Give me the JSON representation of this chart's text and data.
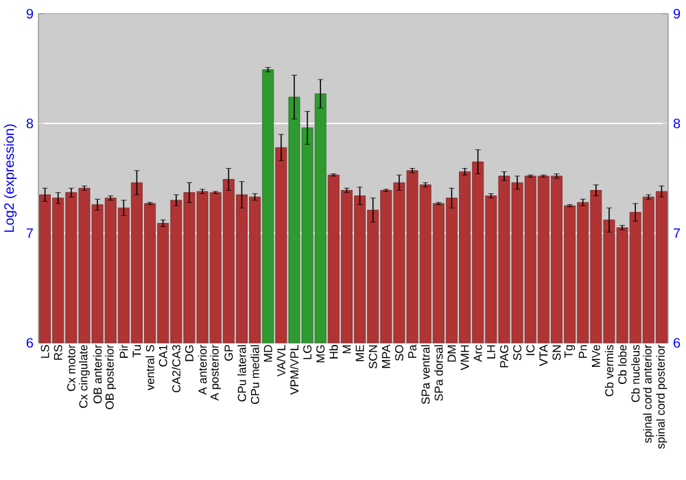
{
  "chart_data": {
    "type": "bar",
    "ylabel": "Log2 (expression)",
    "categories": [
      "LS",
      "RS",
      "Cx motor",
      "Cx cingulate",
      "OB anterior",
      "OB posterior",
      "Pir",
      "Tu",
      "ventral S",
      "CA1",
      "CA2/CA3",
      "DG",
      "A anterior",
      "A posterior",
      "GP",
      "CPu lateral",
      "CPu medial",
      "MD",
      "VA/VL",
      "VPM/VPL",
      "LG",
      "MG",
      "Hb",
      "M",
      "ME",
      "SCN",
      "MPA",
      "SO",
      "Pa",
      "SPa ventral",
      "SPa dorsal",
      "DM",
      "VMH",
      "Arc",
      "LH",
      "PAG",
      "SC",
      "IC",
      "VTA",
      "SN",
      "Tg",
      "Pn",
      "MVe",
      "Cb vermis",
      "Cb lobe",
      "Cb nucleus",
      "spinal cord anterior",
      "spinal cord posterior"
    ],
    "values": [
      7.35,
      7.32,
      7.37,
      7.41,
      7.26,
      7.32,
      7.23,
      7.46,
      7.27,
      7.09,
      7.3,
      7.37,
      7.38,
      7.37,
      7.49,
      7.35,
      7.33,
      8.49,
      7.78,
      8.24,
      7.96,
      8.27,
      7.53,
      7.39,
      7.34,
      7.21,
      7.39,
      7.46,
      7.57,
      7.44,
      7.27,
      7.32,
      7.56,
      7.65,
      7.34,
      7.52,
      7.46,
      7.52,
      7.52,
      7.52,
      7.25,
      7.28,
      7.39,
      7.12,
      7.05,
      7.19,
      7.33,
      7.38
    ],
    "errors": [
      0.06,
      0.05,
      0.04,
      0.02,
      0.05,
      0.02,
      0.07,
      0.11,
      0.01,
      0.03,
      0.05,
      0.09,
      0.02,
      0.01,
      0.1,
      0.12,
      0.03,
      0.02,
      0.12,
      0.2,
      0.15,
      0.13,
      0.01,
      0.02,
      0.08,
      0.11,
      0.01,
      0.07,
      0.02,
      0.02,
      0.01,
      0.09,
      0.03,
      0.11,
      0.02,
      0.04,
      0.06,
      0.01,
      0.01,
      0.02,
      0.01,
      0.03,
      0.05,
      0.11,
      0.02,
      0.08,
      0.02,
      0.05
    ],
    "colors": [
      "#b03434",
      "#b03434",
      "#b03434",
      "#b03434",
      "#b03434",
      "#b03434",
      "#b03434",
      "#b03434",
      "#b03434",
      "#b03434",
      "#b03434",
      "#b03434",
      "#b03434",
      "#b03434",
      "#b03434",
      "#b03434",
      "#b03434",
      "#2f9a2f",
      "#b03434",
      "#2f9a2f",
      "#2f9a2f",
      "#2f9a2f",
      "#b03434",
      "#b03434",
      "#b03434",
      "#b03434",
      "#b03434",
      "#b03434",
      "#b03434",
      "#b03434",
      "#b03434",
      "#b03434",
      "#b03434",
      "#b03434",
      "#b03434",
      "#b03434",
      "#b03434",
      "#b03434",
      "#b03434",
      "#b03434",
      "#b03434",
      "#b03434",
      "#b03434",
      "#b03434",
      "#b03434",
      "#b03434",
      "#b03434",
      "#b03434"
    ],
    "ylim": [
      6,
      9
    ],
    "yticks": [
      6,
      7,
      8,
      9
    ],
    "y2lim": [
      6,
      9
    ],
    "y2ticks": [
      6,
      7,
      8,
      9
    ],
    "grid": "y"
  }
}
